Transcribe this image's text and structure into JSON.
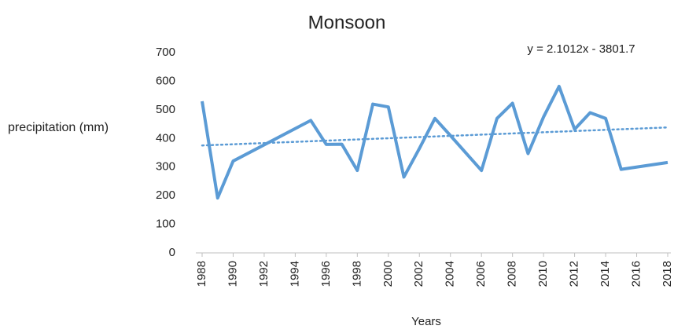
{
  "chart_data": {
    "type": "line",
    "title": "Monsoon",
    "x_label": "Years",
    "y_label": "precipitation (mm)",
    "annotation": "y = 2.1012x - 3801.7",
    "x": [
      1988,
      1989,
      1990,
      1995,
      1996,
      1997,
      1998,
      1999,
      2000,
      2001,
      2002,
      2003,
      2004,
      2006,
      2007,
      2008,
      2009,
      2010,
      2011,
      2012,
      2013,
      2014,
      2015,
      2018
    ],
    "series": [
      {
        "color": "#5b9bd5",
        "values": [
          530,
          192,
          321,
          463,
          379,
          380,
          288,
          520,
          510,
          265,
          365,
          470,
          410,
          288,
          470,
          523,
          347,
          475,
          582,
          432,
          490,
          470,
          292,
          316
        ]
      }
    ],
    "trendline": {
      "x": [
        1988,
        2018
      ],
      "values": [
        375.5,
        438.5
      ],
      "color": "#5b9bd5"
    },
    "xlim": [
      1988,
      2018
    ],
    "xticks": [
      1988,
      1990,
      1992,
      1994,
      1996,
      1998,
      2000,
      2002,
      2004,
      2006,
      2008,
      2010,
      2012,
      2014,
      2016,
      2018
    ],
    "ylim": [
      0,
      700
    ],
    "yticks": [
      0,
      100,
      200,
      300,
      400,
      500,
      600,
      700
    ]
  }
}
